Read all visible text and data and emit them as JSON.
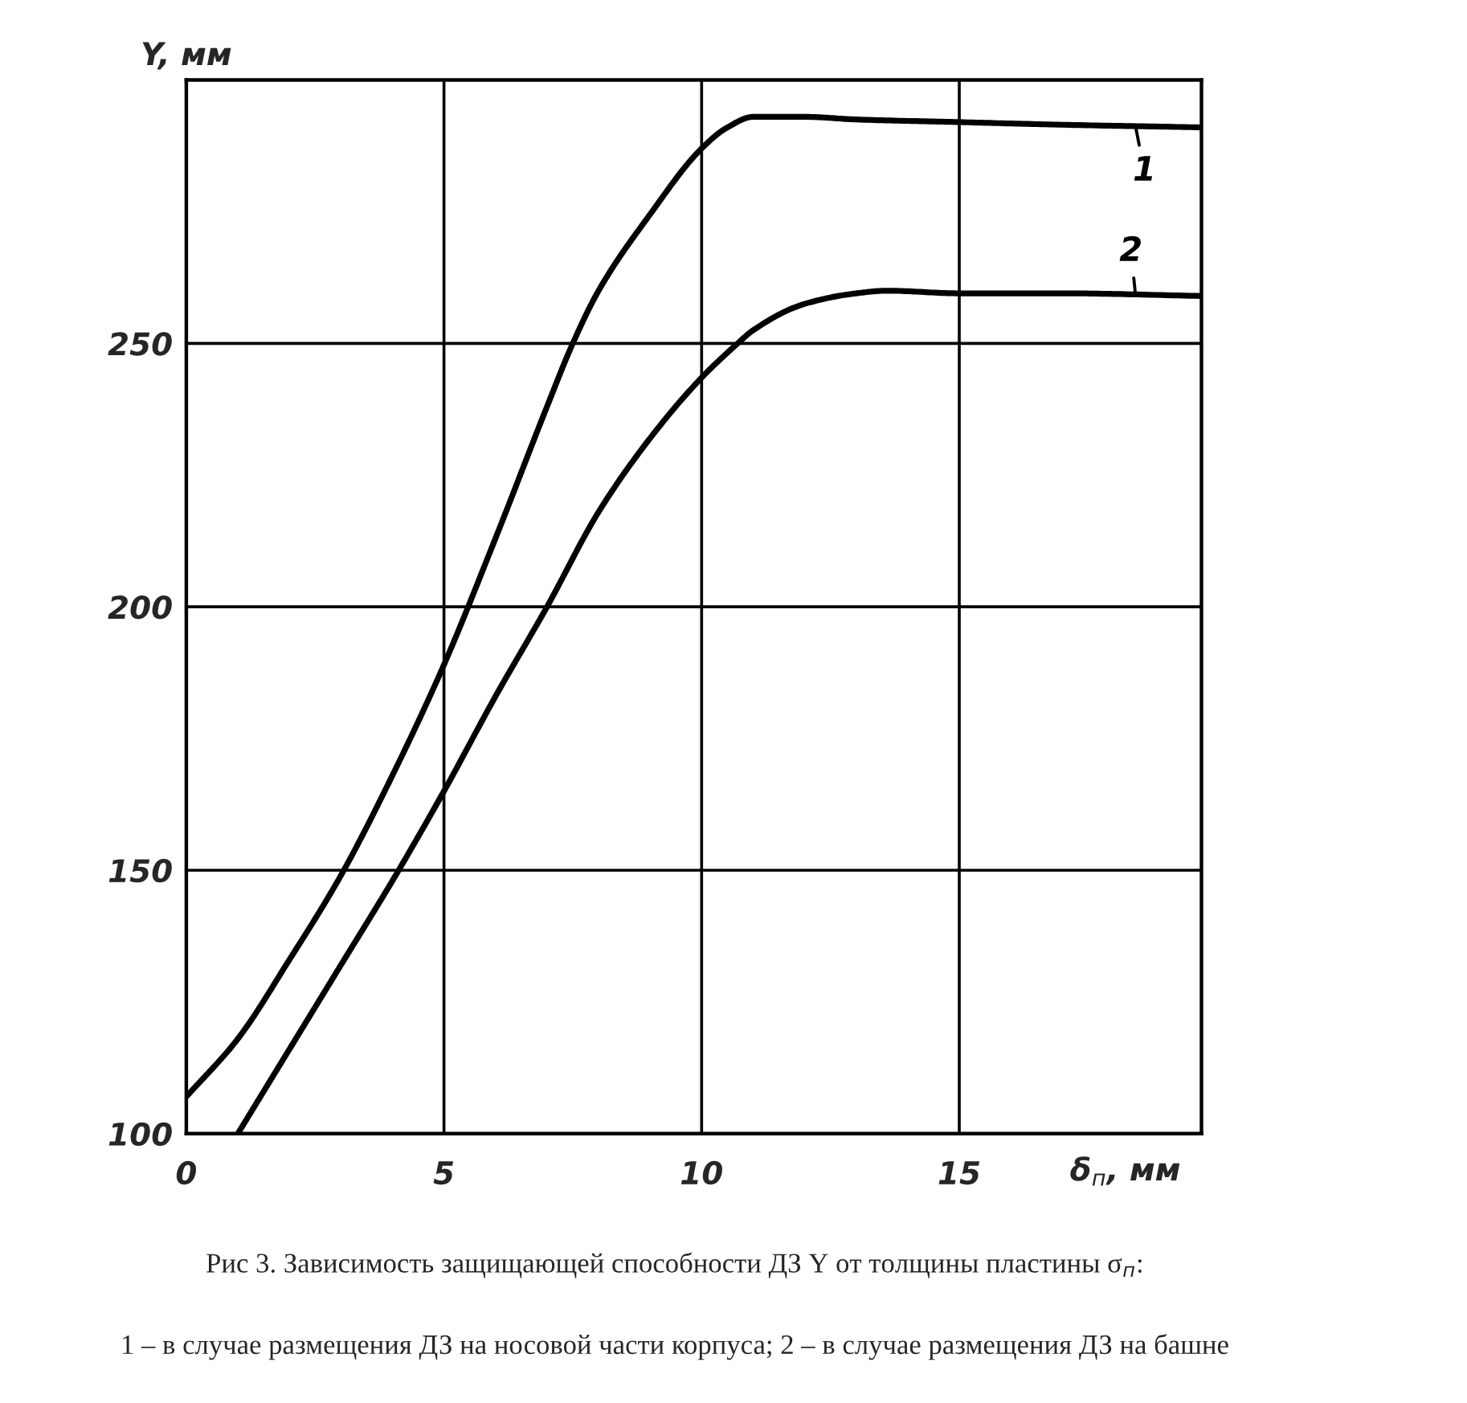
{
  "chart_data": {
    "type": "line",
    "xlabel": "δ$_{п}$, мм",
    "ylabel": "Y, мм",
    "xlim": [
      0,
      19.7
    ],
    "ylim": [
      100,
      300
    ],
    "xticks": [
      0,
      5,
      10,
      15
    ],
    "yticks": [
      100,
      150,
      200,
      250
    ],
    "grid": true,
    "line_style": "solid",
    "series": [
      {
        "name": "1",
        "color": "#000000",
        "x": [
          0,
          1,
          2,
          3,
          4,
          5,
          6,
          7,
          7.5,
          8,
          9,
          10,
          10.5,
          11,
          12,
          13,
          15,
          17,
          19.7
        ],
        "values": [
          107,
          118,
          133,
          149,
          168,
          189,
          213,
          238,
          250,
          260,
          274.5,
          287,
          291,
          293,
          293,
          292.5,
          292,
          291.5,
          291
        ]
      },
      {
        "name": "2",
        "color": "#000000",
        "x": [
          1,
          2,
          3,
          4,
          5,
          6,
          7,
          8,
          9,
          10,
          10.7,
          11,
          12,
          13,
          13.6,
          15,
          17,
          19.7
        ],
        "values": [
          100,
          116,
          132,
          148,
          165,
          183,
          200,
          218,
          232,
          243.5,
          250,
          252.5,
          257.5,
          259.5,
          260,
          259.5,
          259.5,
          259
        ]
      }
    ],
    "annotations": [
      "Рис 3. Зависимость защищающей способности ДЗ Y от толщины пластины σ$_{п}$:",
      "1 – в случае размещения ДЗ на носовой части корпуса; 2 – в случае размещения ДЗ на башне"
    ]
  }
}
